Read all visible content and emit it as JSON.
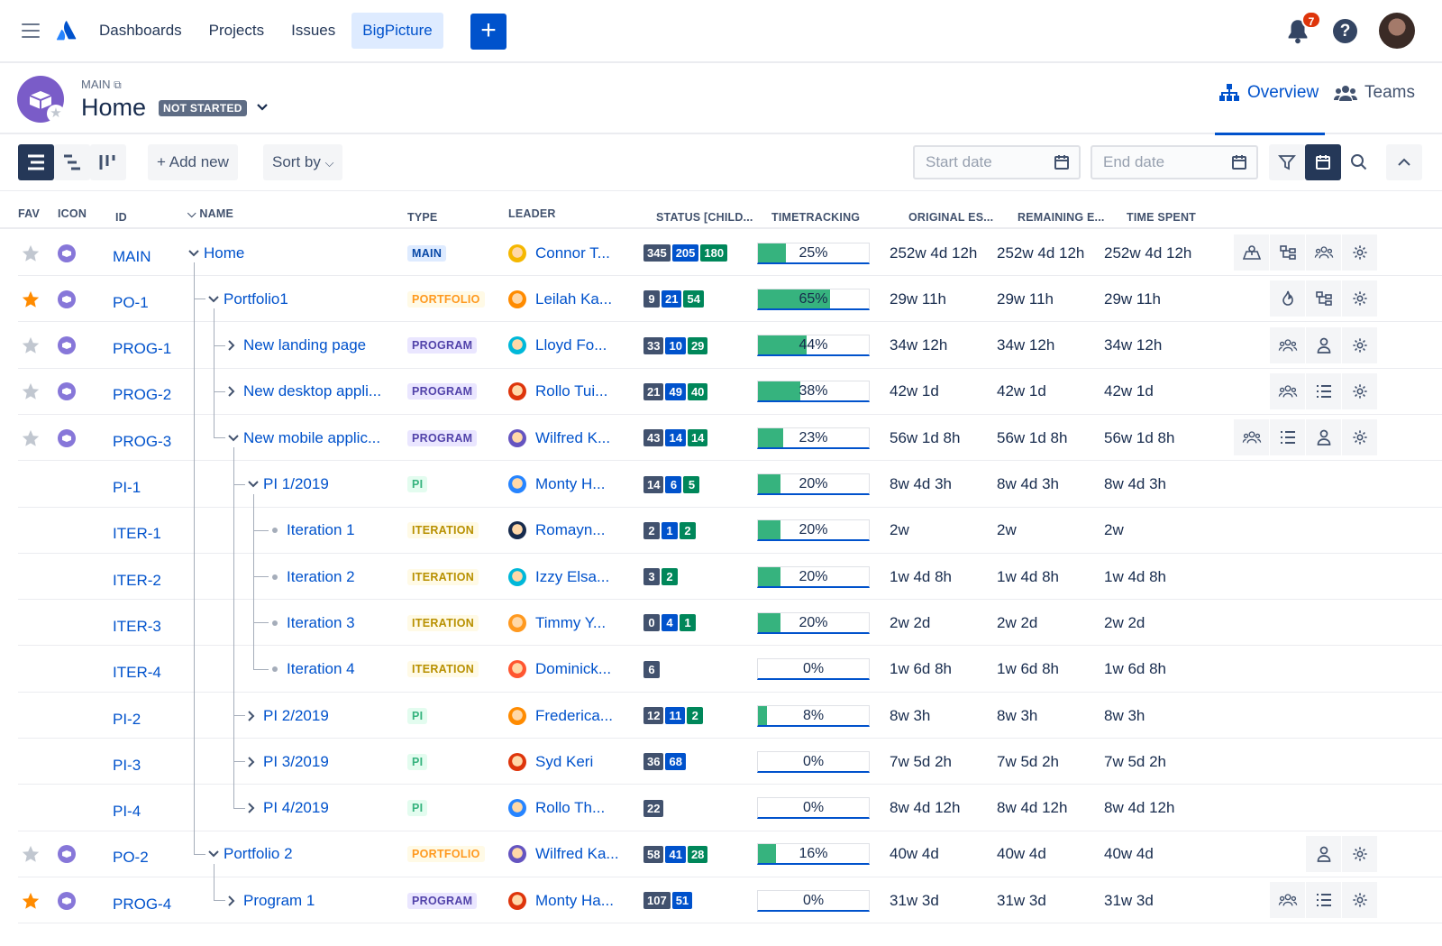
{
  "nav": {
    "items": [
      "Dashboards",
      "Projects",
      "Issues",
      "BigPicture"
    ],
    "notifications_count": "7",
    "help_label": "?"
  },
  "header": {
    "breadcrumb": "MAIN",
    "title": "Home",
    "status": "NOT STARTED",
    "tabs": {
      "overview": "Overview",
      "teams": "Teams"
    }
  },
  "toolbar": {
    "add_new": "Add new",
    "sort_by": "Sort by",
    "start_date_placeholder": "Start date",
    "end_date_placeholder": "End date"
  },
  "columns": {
    "fav": "FAV",
    "icon": "ICON",
    "id": "ID",
    "name": "NAME",
    "type": "TYPE",
    "leader": "LEADER",
    "status": "STATUS [CHILD...",
    "timetracking": "TIMETRACKING",
    "original": "ORIGINAL ES...",
    "remaining": "REMAINING E...",
    "spent": "TIME SPENT"
  },
  "colors": {
    "accent": "#0052cc",
    "done": "#36b37e",
    "star_on": "#ff8b00",
    "star_off": "#c1c7d0"
  },
  "rows": [
    {
      "fav": "off",
      "icon": true,
      "id": "MAIN",
      "name": "Home",
      "level": 0,
      "expander": "down",
      "type": "MAIN",
      "lz": "main",
      "leader": "Connor T...",
      "lc": "#f5b700",
      "status": [
        "345",
        "205",
        "180"
      ],
      "pct": 25,
      "tt": "25%",
      "orig": "252w 4d 12h",
      "rem": "252w 4d 12h",
      "spent": "252w 4d 12h",
      "actions": [
        "map-icon",
        "hierarchy-icon",
        "team-icon",
        "gear-icon"
      ]
    },
    {
      "fav": "on",
      "icon": true,
      "id": "PO-1",
      "name": "Portfolio1",
      "level": 1,
      "expander": "down",
      "type": "PORTFOLIO",
      "lz": "portfolio",
      "leader": "Leilah Ka...",
      "lc": "#ff8b00",
      "status": [
        "9",
        "21",
        "54"
      ],
      "pct": 65,
      "tt": "65%",
      "orig": "29w 11h",
      "rem": "29w 11h",
      "spent": "29w 11h",
      "actions": [
        "fire-icon",
        "hierarchy-icon",
        "gear-icon"
      ]
    },
    {
      "fav": "off",
      "icon": true,
      "id": "PROG-1",
      "name": "New landing page",
      "level": 2,
      "expander": "right",
      "type": "PROGRAM",
      "lz": "program",
      "leader": "Lloyd Fo...",
      "lc": "#00b8d9",
      "status": [
        "33",
        "10",
        "29"
      ],
      "pct": 44,
      "tt": "44%",
      "orig": "34w 12h",
      "rem": "34w 12h",
      "spent": "34w 12h",
      "actions": [
        "team-icon",
        "person-icon",
        "gear-icon"
      ]
    },
    {
      "fav": "off",
      "icon": true,
      "id": "PROG-2",
      "name": "New desktop appli...",
      "level": 2,
      "expander": "right",
      "type": "PROGRAM",
      "lz": "program",
      "leader": "Rollo Tui...",
      "lc": "#de350b",
      "status": [
        "21",
        "49",
        "40"
      ],
      "pct": 38,
      "tt": "38%",
      "orig": "42w 1d",
      "rem": "42w 1d",
      "spent": "42w 1d",
      "actions": [
        "team-icon",
        "list-icon",
        "gear-icon"
      ]
    },
    {
      "fav": "off",
      "icon": true,
      "id": "PROG-3",
      "name": "New mobile applic...",
      "level": 2,
      "expander": "down",
      "type": "PROGRAM",
      "lz": "program",
      "leader": "Wilfred K...",
      "lc": "#6554c0",
      "status": [
        "43",
        "14",
        "14"
      ],
      "pct": 23,
      "tt": "23%",
      "orig": "56w 1d 8h",
      "rem": "56w 1d 8h",
      "spent": "56w 1d 8h",
      "actions": [
        "team-icon",
        "list-icon",
        "person-icon",
        "gear-icon"
      ]
    },
    {
      "fav": "",
      "icon": false,
      "id": "PI-1",
      "name": "PI 1/2019",
      "level": 3,
      "expander": "down",
      "type": "PI",
      "lz": "pi",
      "leader": "Monty H...",
      "lc": "#2684ff",
      "status": [
        "14",
        "6",
        "5"
      ],
      "pct": 20,
      "tt": "20%",
      "orig": "8w 4d 3h",
      "rem": "8w 4d 3h",
      "spent": "8w 4d 3h",
      "actions": []
    },
    {
      "fav": "",
      "icon": false,
      "id": "ITER-1",
      "name": "Iteration 1",
      "level": 4,
      "expander": "dot",
      "type": "ITERATION",
      "lz": "iteration",
      "leader": "Romayn...",
      "lc": "#172b4d",
      "status": [
        "2",
        "1",
        "2"
      ],
      "pct": 20,
      "tt": "20%",
      "orig": "2w",
      "rem": "2w",
      "spent": "2w",
      "actions": []
    },
    {
      "fav": "",
      "icon": false,
      "id": "ITER-2",
      "name": "Iteration 2",
      "level": 4,
      "expander": "dot",
      "type": "ITERATION",
      "lz": "iteration",
      "leader": "Izzy Elsa...",
      "lc": "#00b8d9",
      "status": [
        "3",
        "",
        "2"
      ],
      "pct": 20,
      "tt": "20%",
      "orig": "1w 4d 8h",
      "rem": "1w 4d 8h",
      "spent": "1w 4d 8h",
      "actions": []
    },
    {
      "fav": "",
      "icon": false,
      "id": "ITER-3",
      "name": "Iteration 3",
      "level": 4,
      "expander": "dot",
      "type": "ITERATION",
      "lz": "iteration",
      "leader": "Timmy Y...",
      "lc": "#ff991f",
      "status": [
        "0",
        "4",
        "1"
      ],
      "pct": 20,
      "tt": "20%",
      "orig": "2w 2d",
      "rem": "2w 2d",
      "spent": "2w 2d",
      "actions": []
    },
    {
      "fav": "",
      "icon": false,
      "id": "ITER-4",
      "name": "Iteration 4",
      "level": 4,
      "expander": "dot",
      "type": "ITERATION",
      "lz": "iteration",
      "leader": "Dominick...",
      "lc": "#ff5630",
      "status": [
        "6",
        "",
        ""
      ],
      "pct": 0,
      "tt": "0%",
      "orig": "1w 6d 8h",
      "rem": "1w 6d 8h",
      "spent": "1w 6d 8h",
      "actions": []
    },
    {
      "fav": "",
      "icon": false,
      "id": "PI-2",
      "name": "PI 2/2019",
      "level": 3,
      "expander": "right",
      "type": "PI",
      "lz": "pi",
      "leader": "Frederica...",
      "lc": "#ff8b00",
      "status": [
        "12",
        "11",
        "2"
      ],
      "pct": 8,
      "tt": "8%",
      "orig": "8w 3h",
      "rem": "8w 3h",
      "spent": "8w 3h",
      "actions": []
    },
    {
      "fav": "",
      "icon": false,
      "id": "PI-3",
      "name": "PI 3/2019",
      "level": 3,
      "expander": "right",
      "type": "PI",
      "lz": "pi",
      "leader": "Syd Keri",
      "lc": "#de350b",
      "status": [
        "36",
        "68",
        ""
      ],
      "pct": 0,
      "tt": "0%",
      "orig": "7w 5d 2h",
      "rem": "7w 5d 2h",
      "spent": "7w 5d 2h",
      "actions": []
    },
    {
      "fav": "",
      "icon": false,
      "id": "PI-4",
      "name": "PI 4/2019",
      "level": 3,
      "expander": "right",
      "type": "PI",
      "lz": "pi",
      "leader": "Rollo Th...",
      "lc": "#2684ff",
      "status": [
        "22",
        "",
        ""
      ],
      "pct": 0,
      "tt": "0%",
      "orig": "8w 4d 12h",
      "rem": "8w 4d 12h",
      "spent": "8w 4d 12h",
      "actions": []
    },
    {
      "fav": "off",
      "icon": true,
      "id": "PO-2",
      "name": "Portfolio 2",
      "level": 1,
      "expander": "down",
      "type": "PORTFOLIO",
      "lz": "portfolio",
      "leader": "Wilfred Ka...",
      "lc": "#6554c0",
      "status": [
        "58",
        "41",
        "28"
      ],
      "pct": 16,
      "tt": "16%",
      "orig": "40w 4d",
      "rem": "40w 4d",
      "spent": "40w 4d",
      "actions": [
        "person-icon",
        "gear-icon"
      ]
    },
    {
      "fav": "on",
      "icon": true,
      "id": "PROG-4",
      "name": "Program 1",
      "level": 2,
      "expander": "right",
      "type": "PROGRAM",
      "lz": "program",
      "leader": "Monty Ha...",
      "lc": "#de350b",
      "status": [
        "107",
        "51",
        ""
      ],
      "pct": 0,
      "tt": "0%",
      "orig": "31w 3d",
      "rem": "31w 3d",
      "spent": "31w 3d",
      "actions": [
        "team-icon",
        "list-icon",
        "gear-icon"
      ]
    }
  ]
}
